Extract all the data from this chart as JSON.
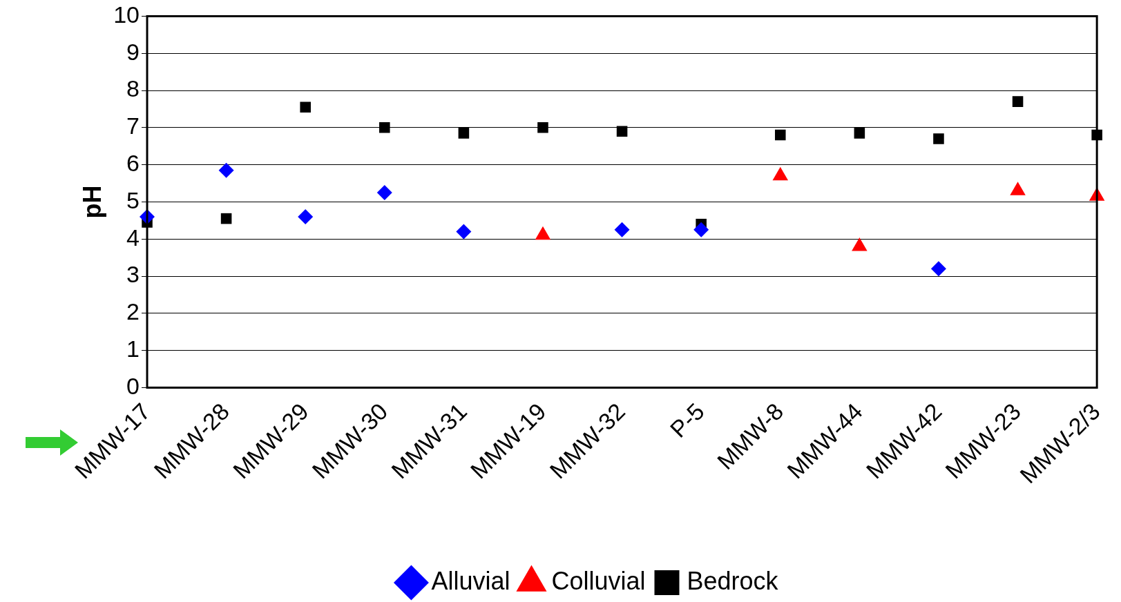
{
  "chart_data": {
    "type": "scatter",
    "ylabel": "pH",
    "categories": [
      "MMW-17",
      "MMW-28",
      "MMW-29",
      "MMW-30",
      "MMW-31",
      "MMW-19",
      "MMW-32",
      "P-5",
      "MMW-8",
      "MMW-44",
      "MMW-42",
      "MMW-23",
      "MMW-2/3"
    ],
    "series": [
      {
        "name": "Alluvial",
        "color": "#0000ff",
        "marker": "diamond",
        "values": [
          4.6,
          5.85,
          4.6,
          5.25,
          4.2,
          null,
          4.25,
          4.25,
          null,
          null,
          3.2,
          null,
          null
        ]
      },
      {
        "name": "Colluvial",
        "color": "#ff0000",
        "marker": "triangle",
        "values": [
          null,
          null,
          null,
          null,
          null,
          4.1,
          null,
          null,
          5.7,
          3.8,
          null,
          5.3,
          5.15
        ]
      },
      {
        "name": "Bedrock",
        "color": "#000000",
        "marker": "square",
        "values": [
          4.45,
          4.55,
          7.55,
          7.0,
          6.85,
          7.0,
          6.9,
          4.4,
          6.8,
          6.85,
          6.7,
          7.7,
          6.8
        ]
      }
    ],
    "ylim": [
      0,
      10
    ],
    "yticks": [
      0,
      1,
      2,
      3,
      4,
      5,
      6,
      7,
      8,
      9,
      10
    ],
    "grid": "y",
    "legend": "bottom"
  }
}
